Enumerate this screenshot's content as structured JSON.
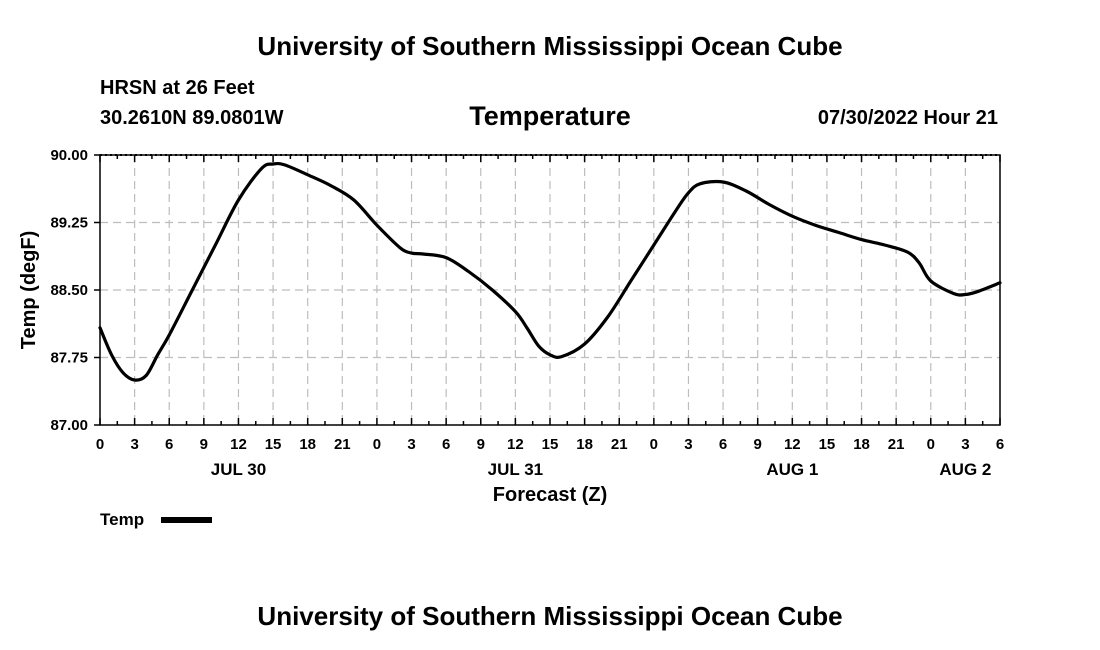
{
  "header": {
    "title": "University of Southern Mississippi Ocean Cube",
    "station": "HRSN at 26 Feet",
    "location": "30.2610N  89.0801W",
    "variable": "Temperature",
    "timestamp": "07/30/2022 Hour 21",
    "footer_title": "University of Southern Mississippi Ocean Cube"
  },
  "legend": {
    "label": "Temp"
  },
  "chart_data": {
    "type": "line",
    "xlabel": "Forecast (Z)",
    "ylabel": "Temp (degF)",
    "x_unit": "hours since JUL 30 00Z",
    "xlim": [
      0,
      78
    ],
    "ylim": [
      87.0,
      90.0
    ],
    "y_ticks": [
      "87.00",
      "87.75",
      "88.50",
      "89.25",
      "90.00"
    ],
    "x_tick_labels": [
      "0",
      "3",
      "6",
      "9",
      "12",
      "15",
      "18",
      "21",
      "0",
      "3",
      "6",
      "9",
      "12",
      "15",
      "18",
      "21",
      "0",
      "3",
      "6",
      "9",
      "12",
      "15",
      "18",
      "21",
      "0",
      "3",
      "6"
    ],
    "date_labels": [
      {
        "label": "JUL 30",
        "hour": 12
      },
      {
        "label": "JUL 31",
        "hour": 36
      },
      {
        "label": "AUG 1",
        "hour": 60
      },
      {
        "label": "AUG 2",
        "hour": 75
      }
    ],
    "grid": true,
    "legend_position": "bottom-left",
    "series": [
      {
        "name": "Temp",
        "color": "#000000",
        "x": [
          0,
          1,
          2,
          3,
          4,
          5,
          6,
          8,
          10,
          12,
          14,
          15,
          16,
          18,
          20,
          22,
          24,
          26,
          27,
          28,
          30,
          32,
          34,
          36,
          37,
          38,
          39,
          40,
          42,
          44,
          46,
          48,
          50,
          51,
          52,
          54,
          56,
          58,
          60,
          62,
          64,
          66,
          68,
          70,
          71,
          72,
          74,
          75,
          76,
          78
        ],
        "values": [
          88.08,
          87.78,
          87.58,
          87.5,
          87.55,
          87.78,
          88.0,
          88.5,
          89.0,
          89.5,
          89.85,
          89.9,
          89.89,
          89.78,
          89.66,
          89.5,
          89.22,
          88.97,
          88.91,
          88.9,
          88.86,
          88.7,
          88.5,
          88.26,
          88.08,
          87.88,
          87.78,
          87.76,
          87.9,
          88.2,
          88.6,
          89.0,
          89.4,
          89.58,
          89.68,
          89.7,
          89.6,
          89.45,
          89.32,
          89.22,
          89.14,
          89.06,
          89.0,
          88.92,
          88.8,
          88.6,
          88.46,
          88.45,
          88.48,
          88.58
        ]
      }
    ]
  }
}
